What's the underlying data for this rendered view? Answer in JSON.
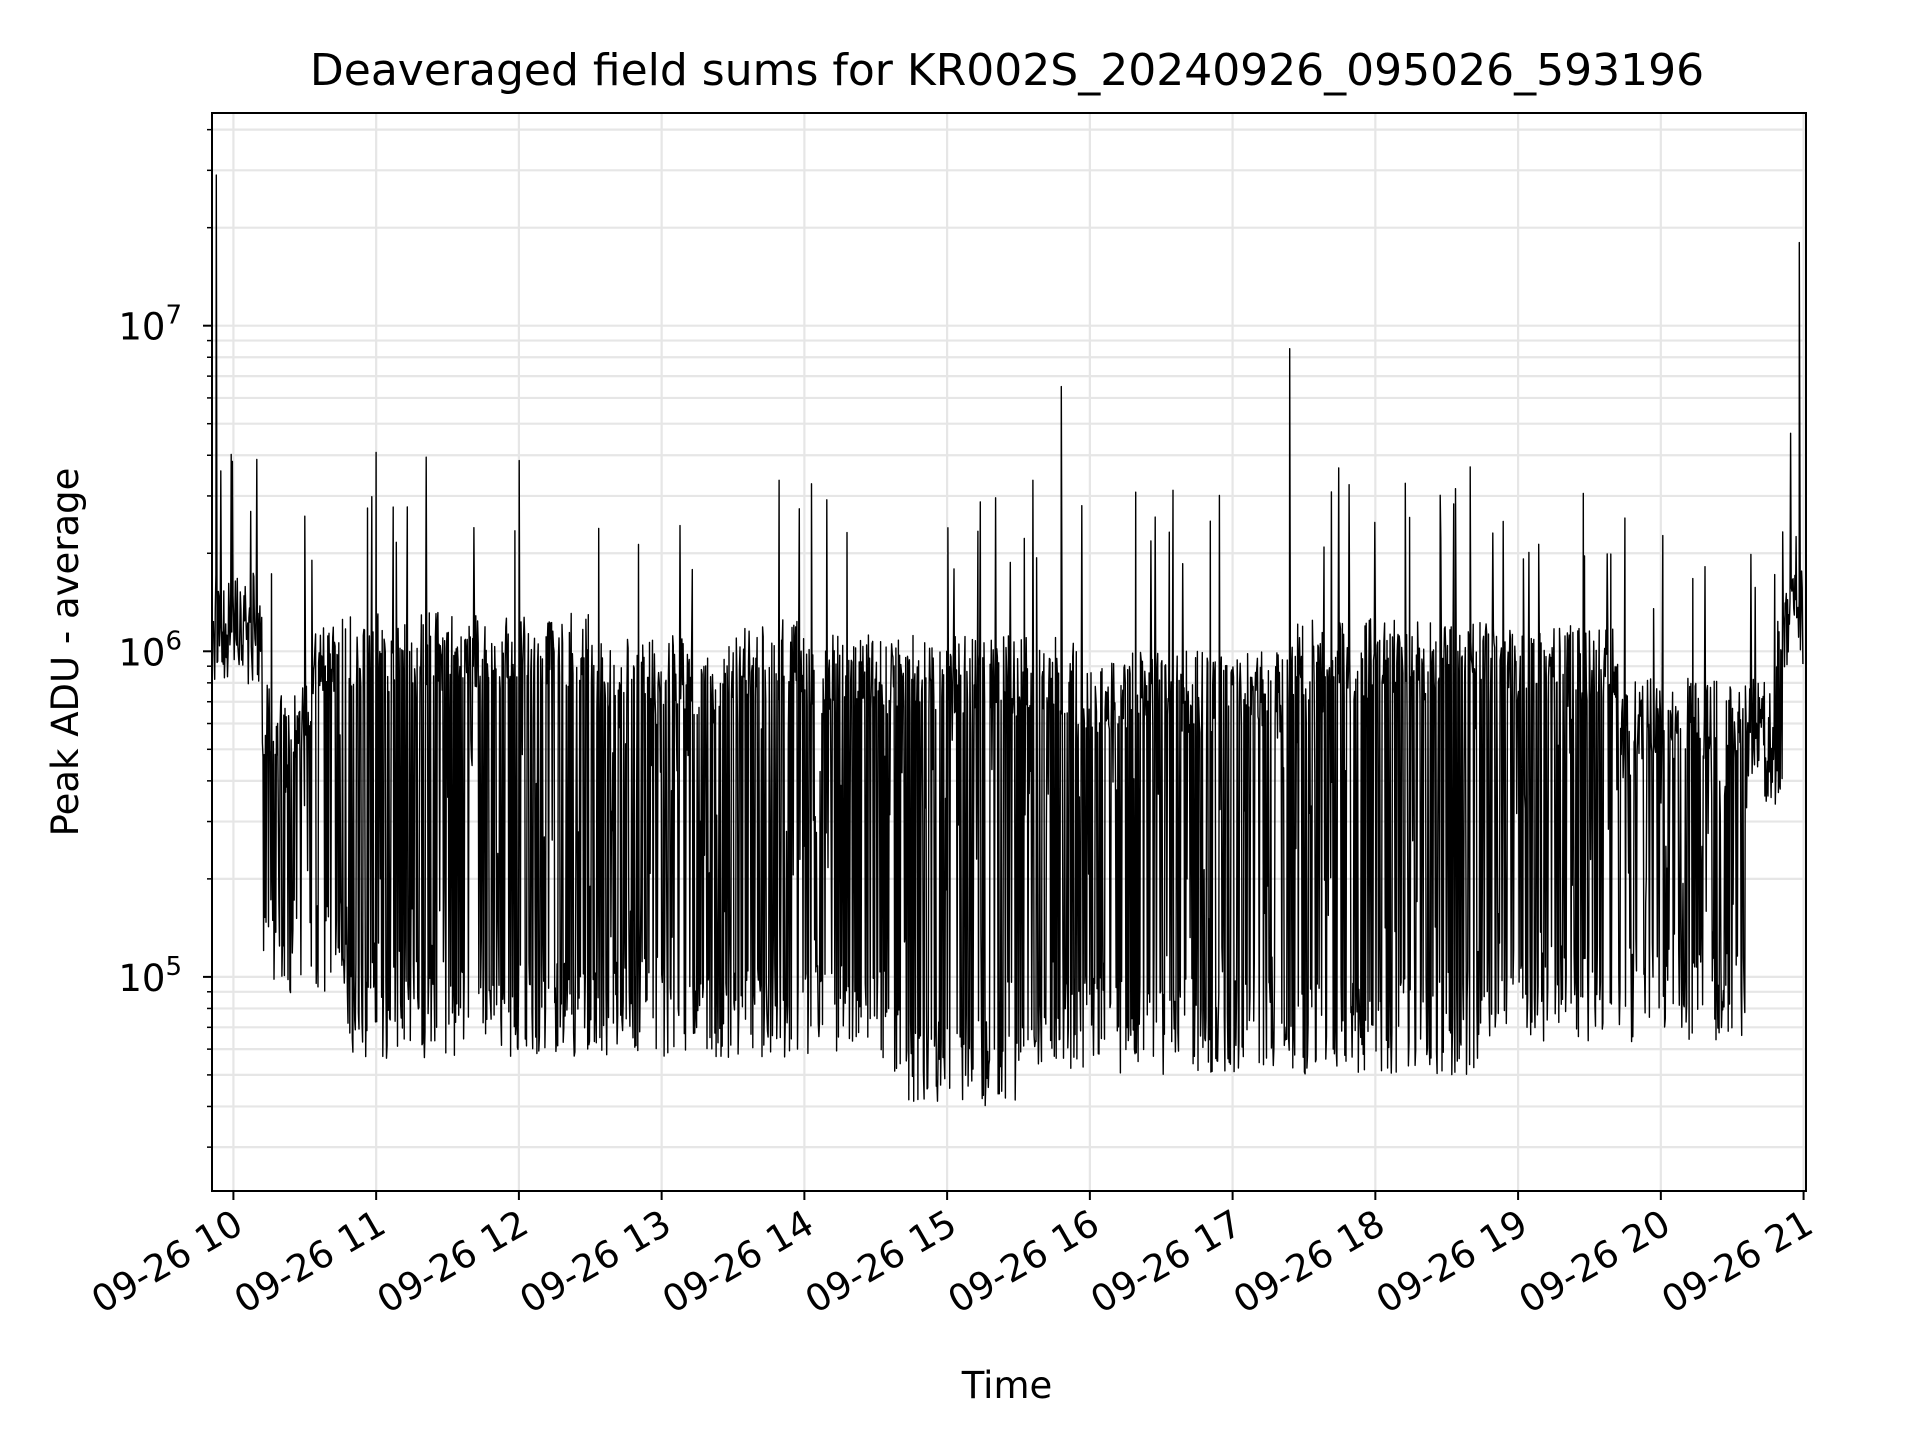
{
  "chart_data": {
    "type": "line",
    "title": "Deaveraged field sums for KR002S_20240926_095026_593196",
    "xlabel": "Time",
    "ylabel": "Peak ADU - average",
    "yscale": "log",
    "ylim": [
      22000,
      45000000
    ],
    "xlim": [
      "09-26 09:51",
      "09-26 21:01"
    ],
    "grid": true,
    "x_tick_labels": [
      "09-26 10",
      "09-26 11",
      "09-26 12",
      "09-26 13",
      "09-26 14",
      "09-26 15",
      "09-26 16",
      "09-26 17",
      "09-26 18",
      "09-26 19",
      "09-26 20",
      "09-26 21"
    ],
    "y_tick_labels": [
      {
        "value": 100000,
        "base": "10",
        "exp": "5"
      },
      {
        "value": 1000000,
        "base": "10",
        "exp": "6"
      },
      {
        "value": 10000000,
        "base": "10",
        "exp": "7"
      }
    ],
    "line_color": "#000000",
    "series": [
      {
        "description": "approximate reconstruction of a dense noisy signal; hour of day vs Peak ADU - average",
        "x_hours": [
          9.86,
          9.87,
          9.88,
          10.0,
          10.1,
          10.2,
          10.3,
          10.5,
          10.5,
          10.9,
          11.5,
          12.0,
          12.5,
          12.9,
          13.5,
          13.8,
          14.3,
          14.9,
          15.3,
          15.7,
          15.8,
          16.0,
          16.6,
          17.3,
          17.4,
          17.8,
          18.5,
          18.9,
          19.5,
          19.8,
          20.0,
          20.6,
          20.9,
          20.95,
          20.97,
          20.99
        ],
        "y": [
          1500000,
          800000,
          29000000,
          1400000,
          1200000,
          600000,
          400000,
          300000,
          2600000,
          350000,
          300000,
          500000,
          350000,
          900000,
          900000,
          400000,
          150000,
          120000,
          150000,
          300000,
          6500000,
          300000,
          300000,
          250000,
          8500000,
          600000,
          400000,
          200000,
          500000,
          450000,
          300000,
          500000,
          1000000,
          1600000,
          18000000,
          900000
        ]
      }
    ]
  }
}
